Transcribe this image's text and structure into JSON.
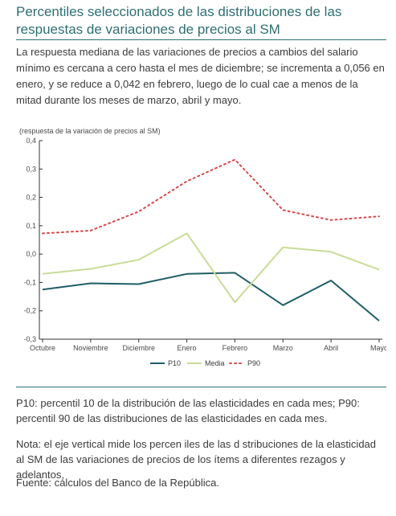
{
  "title": "Percentiles seleccionados de las distribuciones de las respuestas de variaciones de precios al SM",
  "intro": "La respuesta mediana de las variaciones de precios a cambios del salario mínimo es cercana a cero hasta el mes de diciembre; se incrementa a 0,056 en enero, y se reduce a 0,042 en febrero, luego de lo cual cae a menos de la mitad durante los meses de marzo, abril y mayo.",
  "notes": {
    "p": "P10: percentil 10 de la distribución de las elasticidades en cada mes; P90: percentil 90 de las distribuciones de las elasticidades en cada mes.",
    "nota": "Nota: el eje vertical mide los percen iles de las d stribuciones de la elasticidad al SM de las variaciones de precios de los ítems a diferentes rezagos y adelantos.",
    "fuente": "Fuente: cálculos del Banco de la República."
  },
  "colors": {
    "title": "#2e6f73",
    "p10": "#1f5e66",
    "media": "#c8dc96",
    "p90": "#d9474b"
  },
  "chart_data": {
    "type": "line",
    "ylabel": "(respuesta de la variación de precios al SM)",
    "categories": [
      "Octubre",
      "Noviembre",
      "Diciembre",
      "Enero",
      "Febrero",
      "Marzo",
      "Abril",
      "Mayo"
    ],
    "ylim": [
      -0.3,
      0.4
    ],
    "yticks": [
      {
        "v": 0.4,
        "label": "0,4"
      },
      {
        "v": 0.3,
        "label": "0,3"
      },
      {
        "v": 0.2,
        "label": "0,2"
      },
      {
        "v": 0.1,
        "label": "0,1"
      },
      {
        "v": 0.0,
        "label": "0,0"
      },
      {
        "v": -0.1,
        "label": "-0,1"
      },
      {
        "v": -0.2,
        "label": "-0,2"
      },
      {
        "v": -0.3,
        "label": "-0,3"
      }
    ],
    "grid": false,
    "legend_position": "bottom",
    "series": [
      {
        "name": "P10",
        "style": "solid",
        "color": "#1f5e66",
        "values": [
          -0.125,
          -0.103,
          -0.106,
          -0.07,
          -0.066,
          -0.18,
          -0.093,
          -0.235
        ]
      },
      {
        "name": "Media",
        "style": "solid",
        "color": "#c8dc96",
        "values": [
          -0.07,
          -0.052,
          -0.02,
          0.073,
          -0.17,
          0.024,
          0.008,
          -0.055
        ]
      },
      {
        "name": "P90",
        "style": "dotted",
        "color": "#d9474b",
        "values": [
          0.073,
          0.083,
          0.15,
          0.257,
          0.333,
          0.155,
          0.12,
          0.133
        ]
      }
    ]
  }
}
